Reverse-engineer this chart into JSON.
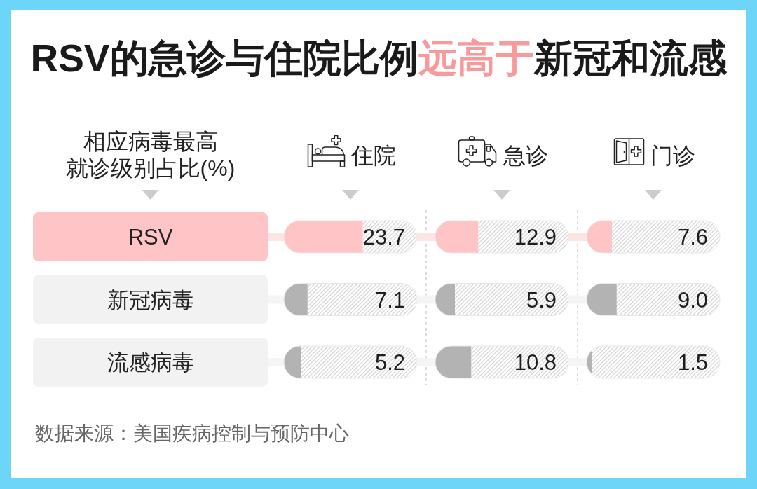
{
  "chart_data": [
    {
      "type": "bar",
      "orientation": "horizontal",
      "title": "RSV的急诊与住院比例远高于新冠和流感",
      "ylabel": "相应病毒最高就诊级别占比(%)",
      "xlabel": "住院",
      "categories": [
        "RSV",
        "新冠病毒",
        "流感病毒"
      ],
      "values": [
        23.7,
        7.1,
        5.2
      ],
      "value_labels": [
        "23.7",
        "7.1",
        "5.2"
      ],
      "colors": [
        "#ffc4c5",
        "#b3b3b3",
        "#b3b3b3"
      ],
      "xlim": [
        0,
        40
      ],
      "tick_labels": "y",
      "annotations": [
        "数据来源：美国疾病控制与预防中心"
      ]
    },
    {
      "type": "bar",
      "orientation": "horizontal",
      "xlabel": "急诊",
      "values": [
        12.9,
        5.9,
        10.8
      ],
      "value_labels": [
        "12.9",
        "5.9",
        "10.8"
      ],
      "colors": [
        "#ffc4c5",
        "#b3b3b3",
        "#b3b3b3"
      ],
      "xlim": [
        0,
        40
      ],
      "tick_labels": false
    },
    {
      "type": "bar",
      "orientation": "horizontal",
      "xlabel": "门诊",
      "values": [
        7.6,
        9.0,
        1.5
      ],
      "value_labels": [
        "7.6",
        "9.0",
        "1.5"
      ],
      "colors": [
        "#ffc4c5",
        "#b3b3b3",
        "#b3b3b3"
      ],
      "xlim": [
        0,
        40
      ],
      "tick_labels": false
    }
  ]
}
